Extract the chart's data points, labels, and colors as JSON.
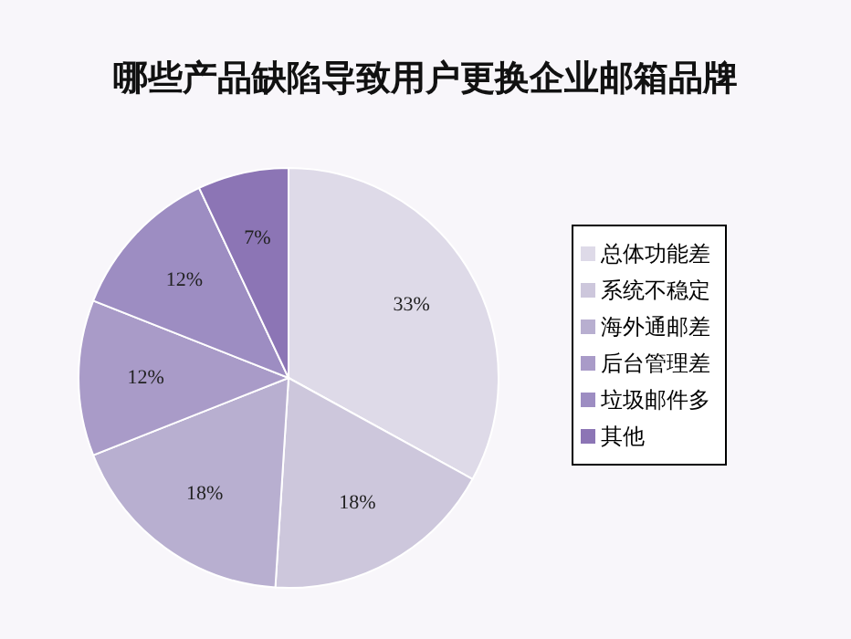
{
  "chart_data": {
    "type": "pie",
    "title": "哪些产品缺陷导致用户更换企业邮箱品牌",
    "categories": [
      "总体功能差",
      "系统不稳定",
      "海外通邮差",
      "后台管理差",
      "垃圾邮件多",
      "其他"
    ],
    "values": [
      33,
      18,
      18,
      12,
      12,
      7
    ],
    "value_labels": [
      "33%",
      "18%",
      "18%",
      "12%",
      "12%",
      "7%"
    ],
    "colors": [
      "#dedae8",
      "#cdc7dc",
      "#b8afd0",
      "#a99bc8",
      "#9d8dc2",
      "#8c75b5"
    ],
    "legend": "right"
  }
}
